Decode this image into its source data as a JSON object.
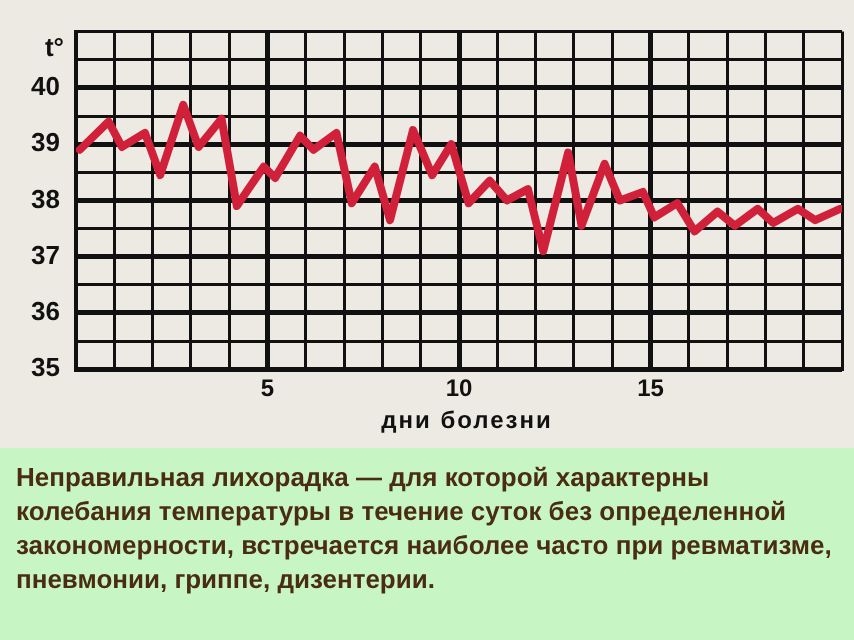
{
  "chart_data": {
    "type": "line",
    "ylabel": "t°",
    "xlabel": "дни болезни",
    "x": [
      0.1,
      0.85,
      1.2,
      1.8,
      2.2,
      2.8,
      3.2,
      3.8,
      4.2,
      4.9,
      5.2,
      5.85,
      6.2,
      6.8,
      7.2,
      7.8,
      8.2,
      8.8,
      9.3,
      9.8,
      10.25,
      10.8,
      11.25,
      11.8,
      12.2,
      12.85,
      13.2,
      13.8,
      14.2,
      14.8,
      15.1,
      15.7,
      16.15,
      16.75,
      17.2,
      17.8,
      18.2,
      18.85,
      19.3,
      19.95
    ],
    "series": [
      {
        "color": "#d0203a",
        "values": [
          38.9,
          39.4,
          38.95,
          39.2,
          38.45,
          39.7,
          38.95,
          39.45,
          37.9,
          38.6,
          38.4,
          39.15,
          38.9,
          39.2,
          37.95,
          38.6,
          37.65,
          39.25,
          38.45,
          39.0,
          37.95,
          38.35,
          38.0,
          38.2,
          37.1,
          38.85,
          37.55,
          38.65,
          38.0,
          38.15,
          37.7,
          37.95,
          37.45,
          37.8,
          37.55,
          37.85,
          37.6,
          37.85,
          37.65,
          37.85
        ]
      }
    ],
    "xlim": [
      0,
      20
    ],
    "xticks": [
      {
        "value": 0,
        "label": null
      },
      {
        "value": 1,
        "label": null
      },
      {
        "value": 2,
        "label": null
      },
      {
        "value": 3,
        "label": null
      },
      {
        "value": 4,
        "label": null
      },
      5,
      {
        "value": 6,
        "label": null
      },
      {
        "value": 7,
        "label": null
      },
      {
        "value": 8,
        "label": null
      },
      {
        "value": 9,
        "label": null
      },
      10,
      {
        "value": 11,
        "label": null
      },
      {
        "value": 12,
        "label": null
      },
      {
        "value": 13,
        "label": null
      },
      {
        "value": 14,
        "label": null
      },
      15,
      {
        "value": 16,
        "label": null
      },
      {
        "value": 17,
        "label": null
      },
      {
        "value": 18,
        "label": null
      },
      {
        "value": 19,
        "label": null
      },
      {
        "value": 20,
        "label": null
      }
    ],
    "ylim": [
      35,
      41
    ],
    "yticks": [
      35,
      {
        "value": 35.5,
        "label": null
      },
      36,
      {
        "value": 36.5,
        "label": null
      },
      37,
      {
        "value": 37.5,
        "label": null
      },
      38,
      {
        "value": 38.5,
        "label": null
      },
      39,
      {
        "value": 39.5,
        "label": null
      },
      40,
      {
        "value": 40.5,
        "label": null
      },
      {
        "value": 41,
        "label": null
      }
    ],
    "grid": true,
    "marker": "none",
    "line_style": "solid",
    "legend": false,
    "annotations": [
      "Неправильная лихорадка — для которой характерны колебания температуры в течение суток без определенной закономерности, встречается наиболее часто при ревматизме, пневмонии, гриппе, дизентерии."
    ]
  }
}
